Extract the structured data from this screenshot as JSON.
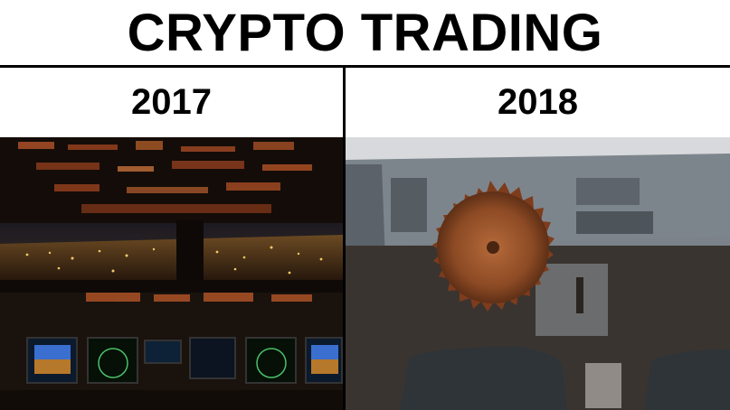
{
  "meme": {
    "title": "CRYPTO TRADING",
    "panels": [
      {
        "year": "2017",
        "image": "airliner-cockpit-at-night"
      },
      {
        "year": "2018",
        "image": "rusty-car-interior-with-saw-blade-steering-wheel"
      }
    ]
  },
  "colors": {
    "background": "#ffffff",
    "text": "#000000",
    "divider": "#000000"
  }
}
